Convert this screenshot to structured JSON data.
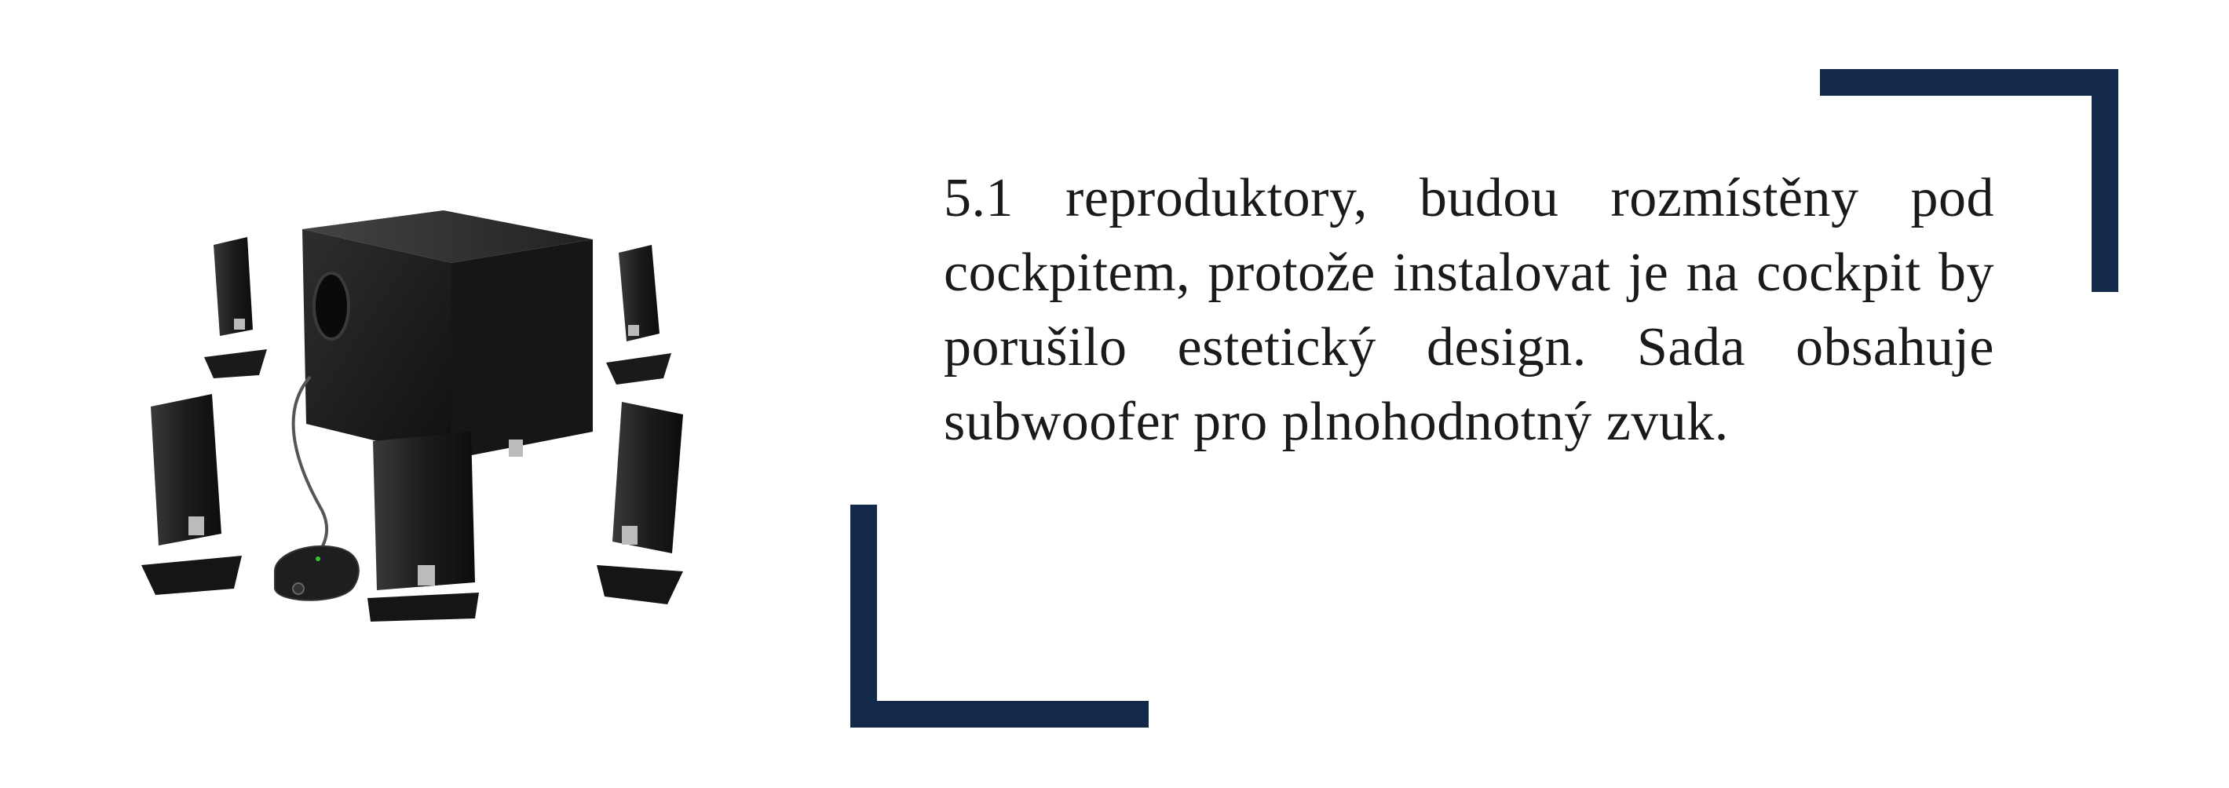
{
  "colors": {
    "accent": "#13294a",
    "text": "#1a1a1a",
    "background": "#ffffff"
  },
  "content": {
    "paragraph": "5.1 reproduktory, budou rozmístěny pod cockpitem, protože instalovat je na cockpit by porušilo estetický design. Sada obsahuje subwoofer pro plnohodnotný zvuk."
  },
  "image": {
    "icon": "speaker-system-5-1-image"
  }
}
